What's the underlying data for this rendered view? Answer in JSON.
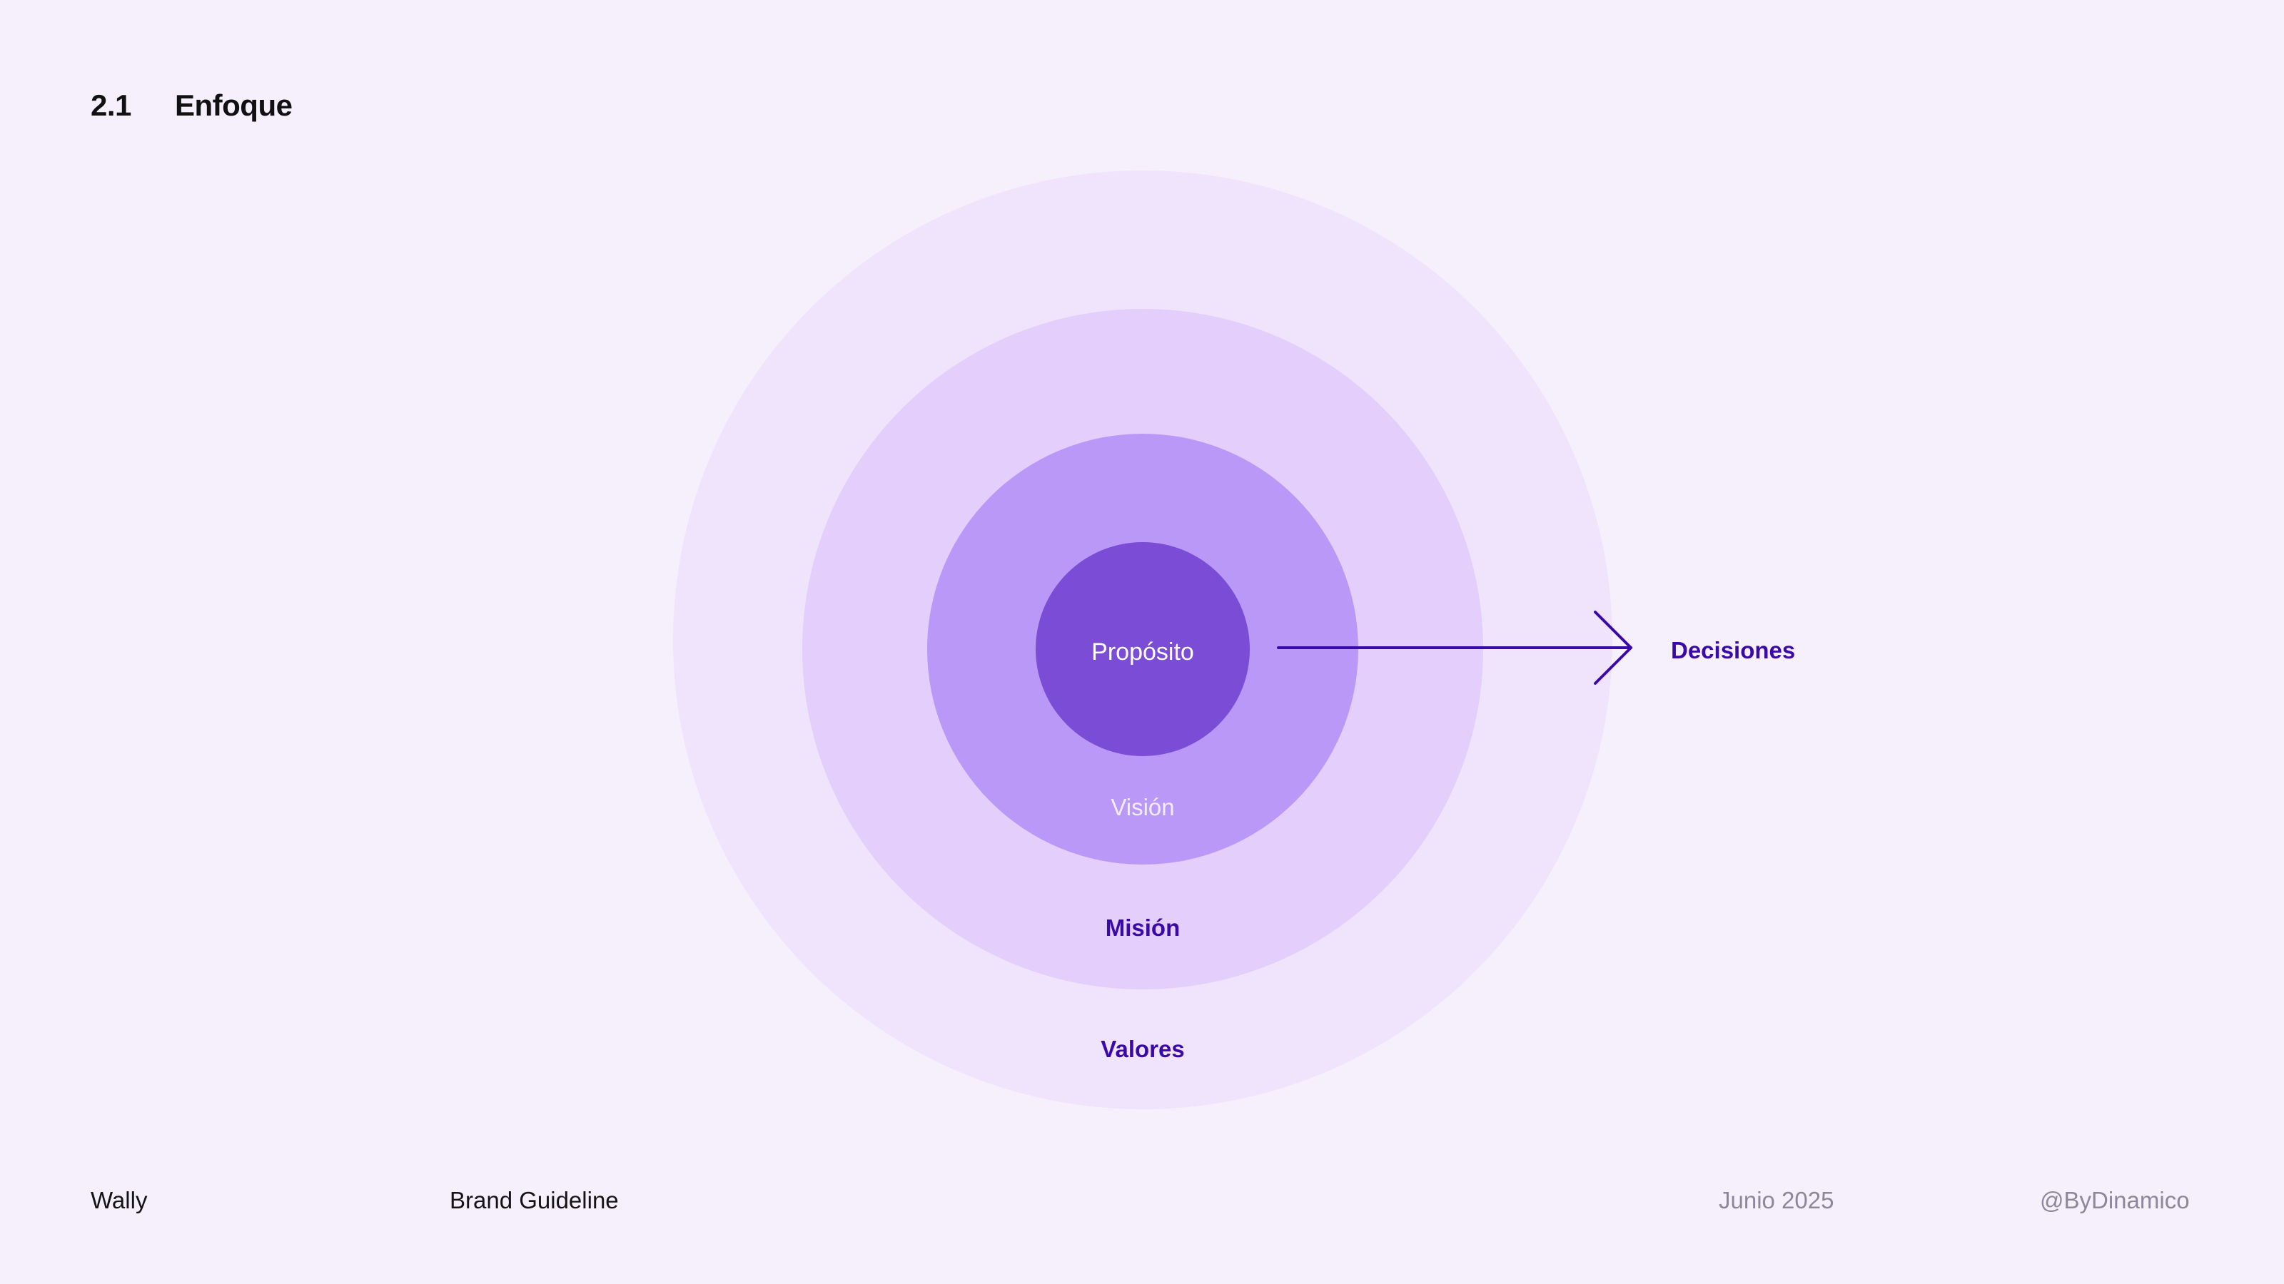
{
  "header": {
    "section_number": "2.1",
    "title": "Enfoque"
  },
  "diagram": {
    "layers": [
      {
        "label": "Propósito",
        "fill": "#7b4cd6",
        "label_color": "#ffffff"
      },
      {
        "label": "Visión",
        "fill": "#b998f7",
        "label_color": "#f3ecff"
      },
      {
        "label": "Misión",
        "fill": "#e3cefc",
        "label_color": "#3a0aa8"
      },
      {
        "label": "Valores",
        "fill": "#f0e4fc",
        "label_color": "#3a0aa8"
      }
    ],
    "arrow_label": "Decisiones",
    "arrow_color": "#3a0aa8"
  },
  "footer": {
    "brand": "Wally",
    "document": "Brand Guideline",
    "date": "Junio 2025",
    "handle": "@ByDinamico"
  }
}
